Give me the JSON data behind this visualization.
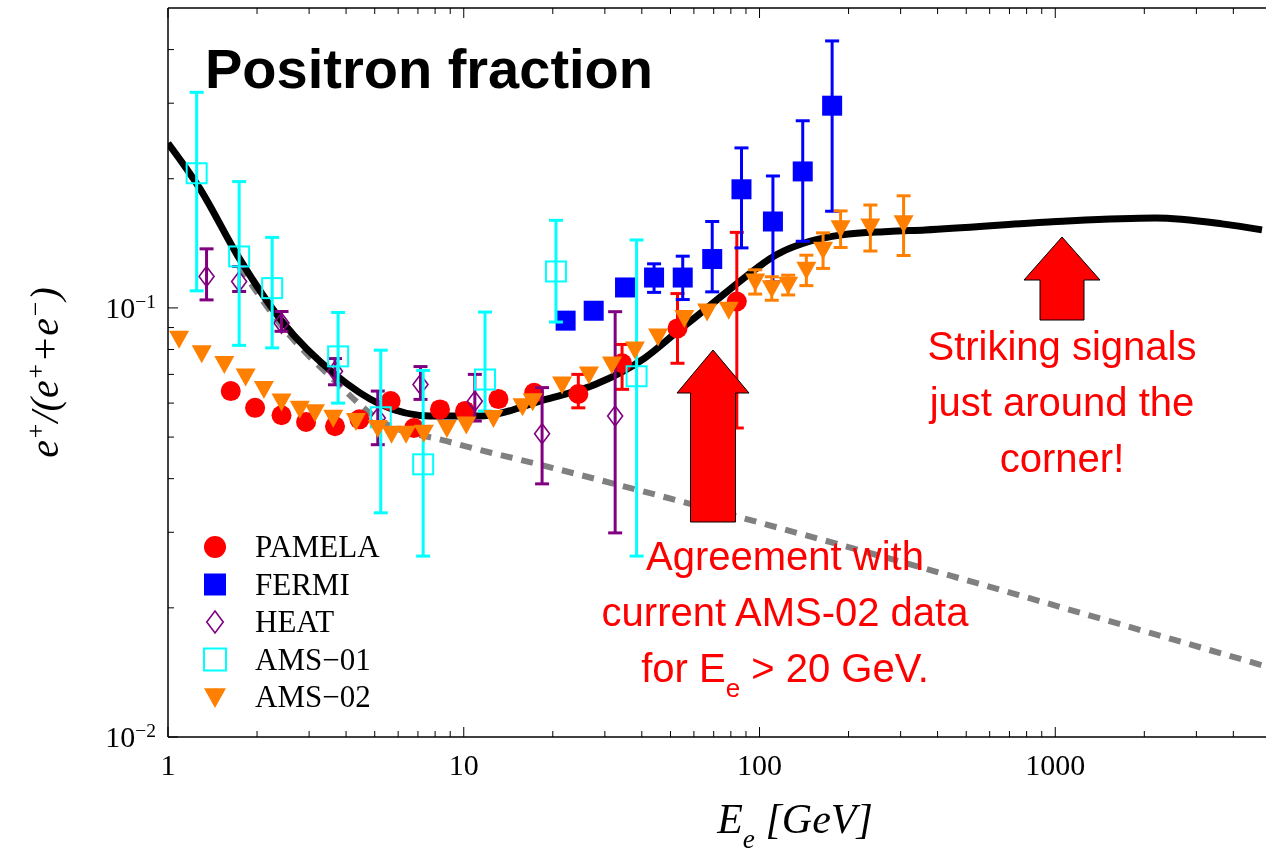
{
  "chart_data": {
    "type": "scatter",
    "title": "Positron fraction",
    "xlabel": "E$_{e}$ [GeV]",
    "ylabel": "e$^{+}$/(e$^{+}$+e$^{−}$)",
    "log": "xy",
    "legend": "bottom left",
    "xlim": [
      1,
      5000
    ],
    "ylim": [
      0.01,
      0.5
    ],
    "xticks": [
      1,
      {
        "value": 2,
        "label": null
      },
      {
        "value": 3,
        "label": null
      },
      {
        "value": 4,
        "label": null
      },
      {
        "value": 5,
        "label": null
      },
      {
        "value": 6,
        "label": null
      },
      {
        "value": 7,
        "label": null
      },
      {
        "value": 8,
        "label": null
      },
      {
        "value": 9,
        "label": null
      },
      10,
      {
        "value": 20,
        "label": null
      },
      {
        "value": 30,
        "label": null
      },
      {
        "value": 40,
        "label": null
      },
      {
        "value": 50,
        "label": null
      },
      {
        "value": 60,
        "label": null
      },
      {
        "value": 70,
        "label": null
      },
      {
        "value": 80,
        "label": null
      },
      {
        "value": 90,
        "label": null
      },
      100,
      {
        "value": 200,
        "label": null
      },
      {
        "value": 300,
        "label": null
      },
      {
        "value": 400,
        "label": null
      },
      {
        "value": 500,
        "label": null
      },
      {
        "value": 600,
        "label": null
      },
      {
        "value": 700,
        "label": null
      },
      {
        "value": 800,
        "label": null
      },
      {
        "value": 900,
        "label": null
      },
      1000,
      {
        "value": 2000,
        "label": null
      },
      {
        "value": 3000,
        "label": null
      },
      {
        "value": 4000,
        "label": null
      }
    ],
    "yticks": [
      {
        "value": 0.01,
        "label": "10$^{−2}$"
      },
      {
        "value": 0.02,
        "label": null
      },
      {
        "value": 0.03,
        "label": null
      },
      {
        "value": 0.04,
        "label": null
      },
      {
        "value": 0.05,
        "label": null
      },
      {
        "value": 0.06,
        "label": null
      },
      {
        "value": 0.07,
        "label": null
      },
      {
        "value": 0.08,
        "label": null
      },
      {
        "value": 0.09,
        "label": null
      },
      {
        "value": 0.1,
        "label": "10$^{−1}$"
      },
      {
        "value": 0.2,
        "label": null
      },
      {
        "value": 0.3,
        "label": null
      },
      {
        "value": 0.4,
        "label": null
      }
    ],
    "series": [
      {
        "type": "line",
        "line_style": "dashed",
        "color": "#808080",
        "x": [
          1.74,
          2.43,
          3.67,
          5.25,
          8.77,
          18.9,
          5000
        ],
        "values": [
          0.125,
          0.0906,
          0.0675,
          0.0545,
          0.0489,
          0.0428,
          0.0147
        ]
      },
      {
        "type": "line",
        "line_style": "solid",
        "color": "#000000",
        "x": [
          1,
          1.28,
          1.74,
          2.43,
          3.67,
          5.25,
          7.71,
          11.3,
          18.9,
          27.8,
          40.9,
          52.9,
          68.5,
          88.5,
          114,
          147,
          190,
          273,
          363,
          1010,
          2180,
          3660,
          5000
        ],
        "values": [
          0.242,
          0.19,
          0.1306,
          0.093,
          0.07,
          0.0595,
          0.056,
          0.056,
          0.0612,
          0.0663,
          0.0764,
          0.0882,
          0.1017,
          0.1173,
          0.133,
          0.1428,
          0.148,
          0.1507,
          0.152,
          0.159,
          0.162,
          0.157,
          0.152
        ]
      },
      {
        "name": "PAMELA",
        "marker": "circle",
        "color": "#ff0000",
        "x": [
          1.63,
          1.97,
          2.42,
          2.93,
          3.67,
          4.44,
          5.66,
          6.79,
          8.31,
          10.1,
          13.1,
          17.3,
          24.4,
          34.3,
          52.8,
          83.8
        ],
        "values": [
          0.064,
          0.0585,
          0.0562,
          0.0542,
          0.053,
          0.055,
          0.0607,
          0.0525,
          0.058,
          0.0575,
          0.0613,
          0.0634,
          0.063,
          0.0743,
          0.0896,
          0.1035
        ],
        "errors": [
          null,
          null,
          null,
          null,
          null,
          null,
          null,
          null,
          0.002,
          0.002,
          0.002,
          0.002,
          [
            0.0585,
            0.07
          ],
          [
            0.0646,
            0.0822
          ],
          [
            0.0743,
            0.108
          ],
          [
            0.0525,
            0.15
          ]
        ]
      },
      {
        "name": "FERMI",
        "marker": "square",
        "color": "#0000ff",
        "x": [
          22.1,
          27.5,
          35.1,
          44,
          55,
          69.2,
          86.9,
          111,
          140,
          176
        ],
        "values": [
          0.0934,
          0.0985,
          0.1116,
          0.1177,
          0.1177,
          0.13,
          0.189,
          0.159,
          0.208,
          0.296
        ],
        "errors": [
          null,
          null,
          null,
          0.009,
          [
            0.1046,
            0.132
          ],
          [
            0.109,
            0.159
          ],
          [
            0.138,
            0.236
          ],
          0.044,
          0.065,
          [
            0.168,
            0.419
          ]
        ]
      },
      {
        "name": "HEAT",
        "marker": "diamond-open",
        "color": "#800080",
        "x": [
          1.35,
          1.74,
          2.42,
          3.67,
          5.12,
          7.14,
          10.9,
          18.4,
          32.5
        ],
        "values": [
          0.1184,
          0.1152,
          0.0922,
          0.0712,
          0.0554,
          0.0663,
          0.0606,
          0.0509,
          0.056
        ],
        "errors": [
          [
            0.1044,
            0.1373
          ],
          [
            0.1092,
            0.1249
          ],
          [
            0.0882,
            0.0981
          ],
          0.005,
          [
            0.048,
            0.064
          ],
          [
            0.0612,
            0.073
          ],
          [
            0.0545,
            0.07
          ],
          [
            0.0389,
            0.0652
          ],
          [
            0.0299,
            0.098
          ]
        ]
      },
      {
        "name": "AMS−01",
        "marker": "square-open",
        "color": "#00ffff",
        "x": [
          1.25,
          1.74,
          2.25,
          3.76,
          5.24,
          7.29,
          11.8,
          20.5,
          38.4
        ],
        "values": [
          0.206,
          0.1318,
          0.1112,
          0.0771,
          0.0556,
          0.0432,
          0.0681,
          0.1216,
          0.0693
        ],
        "errors": [
          [
            0.1096,
            0.318
          ],
          [
            0.0818,
            0.197
          ],
          [
            0.0807,
            0.146
          ],
          [
            0.06,
            0.0976
          ],
          [
            0.0333,
            0.0797
          ],
          [
            0.0264,
            0.0715
          ],
          [
            0.0575,
            0.0978
          ],
          [
            0.0927,
            0.16
          ],
          [
            0.0264,
            0.144
          ]
        ]
      },
      {
        "name": "AMS−02",
        "marker": "triangle-down",
        "color": "#ff8000",
        "x": [
          1.09,
          1.3,
          1.55,
          1.83,
          2.11,
          2.42,
          2.79,
          3.14,
          3.62,
          4.32,
          5.12,
          5.7,
          6.38,
          7.33,
          8.77,
          10.2,
          12.6,
          15.8,
          17.1,
          21.5,
          26.5,
          31.7,
          37.9,
          45.4,
          55.7,
          66.5,
          78.7,
          96.7,
          110,
          125,
          144,
          164,
          188,
          237,
          307
        ],
        "values": [
          0.0847,
          0.0784,
          0.074,
          0.0692,
          0.0647,
          0.0605,
          0.0582,
          0.0571,
          0.0555,
          0.0545,
          0.0525,
          0.0509,
          0.0509,
          0.0512,
          0.0525,
          0.0535,
          0.0554,
          0.059,
          0.0606,
          0.0663,
          0.07,
          0.0738,
          0.08,
          0.0858,
          0.0947,
          0.0981,
          0.099,
          0.1152,
          0.1112,
          0.1132,
          0.1227,
          0.1366,
          0.1533,
          0.1547,
          0.1575
        ],
        "errors": [
          null,
          null,
          null,
          null,
          null,
          null,
          null,
          null,
          null,
          null,
          null,
          null,
          null,
          null,
          null,
          null,
          null,
          null,
          null,
          null,
          null,
          null,
          null,
          null,
          null,
          null,
          null,
          0.0075,
          0.007,
          0.006,
          0.01,
          0.013,
          0.015,
          0.019,
          0.025
        ]
      }
    ],
    "annotations": [
      "Agreement with\ncurrent AMS-02 data\nfor E$_{e}$ > 20 GeV.",
      "Striking signals\njust around the\ncorner!"
    ]
  }
}
